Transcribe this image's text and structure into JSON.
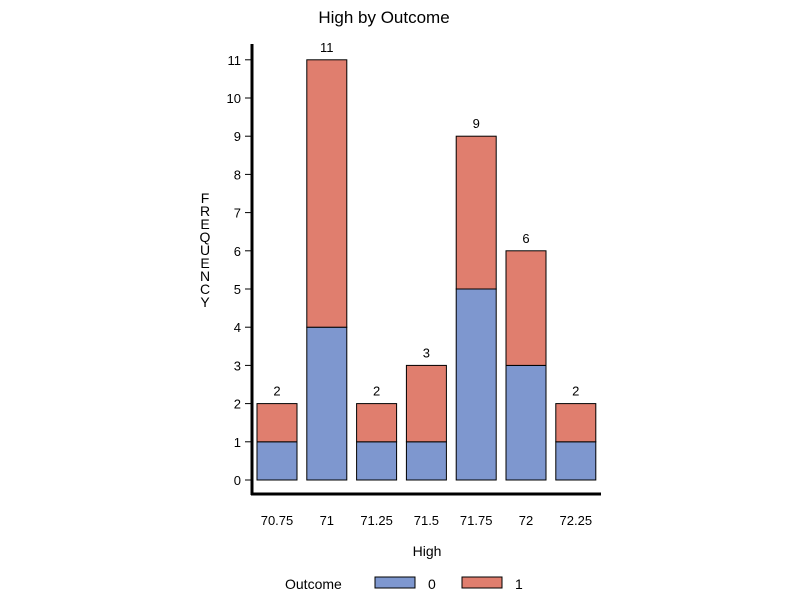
{
  "chart_data": {
    "type": "bar",
    "stacked": true,
    "title": "High by Outcome",
    "xlabel": "High",
    "ylabel": "FREQUENCY",
    "categories": [
      "70.75",
      "71",
      "71.25",
      "71.5",
      "71.75",
      "72",
      "72.25"
    ],
    "series": [
      {
        "name": "0",
        "values": [
          1,
          4,
          1,
          1,
          5,
          3,
          1
        ],
        "color": "#7e97cf"
      },
      {
        "name": "1",
        "values": [
          1,
          7,
          1,
          2,
          4,
          3,
          1
        ],
        "color": "#e07e6e"
      }
    ],
    "totals": [
      "2",
      "11",
      "2",
      "3",
      "9",
      "6",
      "2"
    ],
    "ylim": [
      0,
      11
    ],
    "yticks": [
      "0",
      "1",
      "2",
      "3",
      "4",
      "5",
      "6",
      "7",
      "8",
      "9",
      "10",
      "11"
    ],
    "grid": false,
    "legend": {
      "title": "Outcome",
      "placement": "bottom",
      "entries": [
        "0",
        "1"
      ]
    }
  }
}
